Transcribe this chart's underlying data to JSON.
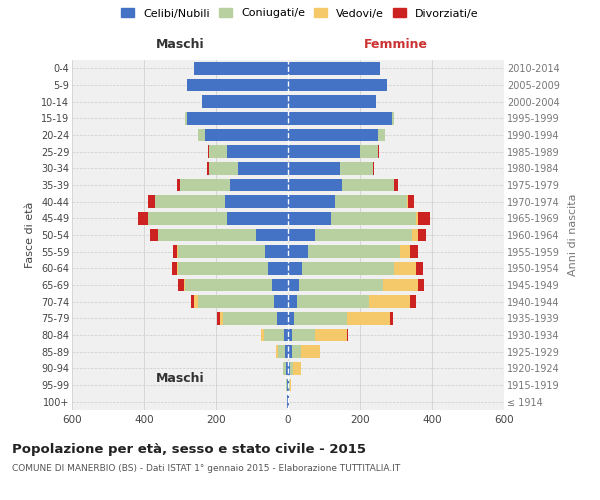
{
  "age_groups": [
    "100+",
    "95-99",
    "90-94",
    "85-89",
    "80-84",
    "75-79",
    "70-74",
    "65-69",
    "60-64",
    "55-59",
    "50-54",
    "45-49",
    "40-44",
    "35-39",
    "30-34",
    "25-29",
    "20-24",
    "15-19",
    "10-14",
    "5-9",
    "0-4"
  ],
  "birth_years": [
    "≤ 1914",
    "1915-1919",
    "1920-1924",
    "1925-1929",
    "1930-1934",
    "1935-1939",
    "1940-1944",
    "1945-1949",
    "1950-1954",
    "1955-1959",
    "1960-1964",
    "1965-1969",
    "1970-1974",
    "1975-1979",
    "1980-1984",
    "1985-1989",
    "1990-1994",
    "1995-1999",
    "2000-2004",
    "2005-2009",
    "2010-2014"
  ],
  "males": {
    "celibi": [
      2,
      3,
      5,
      8,
      12,
      30,
      40,
      45,
      55,
      65,
      90,
      170,
      175,
      160,
      140,
      170,
      230,
      280,
      240,
      280,
      260
    ],
    "coniugati": [
      0,
      2,
      8,
      20,
      55,
      150,
      210,
      240,
      250,
      240,
      270,
      220,
      195,
      140,
      80,
      50,
      20,
      5,
      0,
      0,
      0
    ],
    "vedovi": [
      0,
      0,
      2,
      5,
      8,
      10,
      10,
      5,
      4,
      2,
      2,
      0,
      0,
      0,
      0,
      0,
      0,
      0,
      0,
      0,
      0
    ],
    "divorziati": [
      0,
      0,
      0,
      0,
      1,
      8,
      10,
      15,
      12,
      12,
      20,
      28,
      18,
      8,
      4,
      2,
      0,
      0,
      0,
      0,
      0
    ]
  },
  "females": {
    "nubili": [
      2,
      3,
      5,
      10,
      10,
      18,
      25,
      30,
      40,
      55,
      75,
      120,
      130,
      150,
      145,
      200,
      250,
      290,
      245,
      275,
      255
    ],
    "coniugate": [
      0,
      2,
      10,
      25,
      65,
      145,
      200,
      235,
      255,
      255,
      270,
      235,
      200,
      145,
      90,
      50,
      20,
      5,
      0,
      0,
      0
    ],
    "vedove": [
      0,
      3,
      20,
      55,
      90,
      120,
      115,
      95,
      60,
      30,
      15,
      5,
      2,
      0,
      0,
      0,
      0,
      0,
      0,
      0,
      0
    ],
    "divorziate": [
      0,
      0,
      0,
      0,
      2,
      10,
      15,
      18,
      20,
      20,
      22,
      35,
      18,
      10,
      5,
      2,
      0,
      0,
      0,
      0,
      0
    ]
  },
  "colors": {
    "celibi_nubili": "#4472c4",
    "coniugati": "#b8cfa0",
    "vedovi": "#f5c96a",
    "divorziati": "#cc2222"
  },
  "title": "Popolazione per età, sesso e stato civile - 2015",
  "subtitle": "COMUNE DI MANERBIO (BS) - Dati ISTAT 1° gennaio 2015 - Elaborazione TUTTITALIA.IT",
  "xlabel_left": "Maschi",
  "xlabel_right": "Femmine",
  "ylabel_left": "Fasce di età",
  "ylabel_right": "Anni di nascita",
  "xlim": 600,
  "bg_color": "#f0f0f0",
  "grid_color": "#cccccc"
}
